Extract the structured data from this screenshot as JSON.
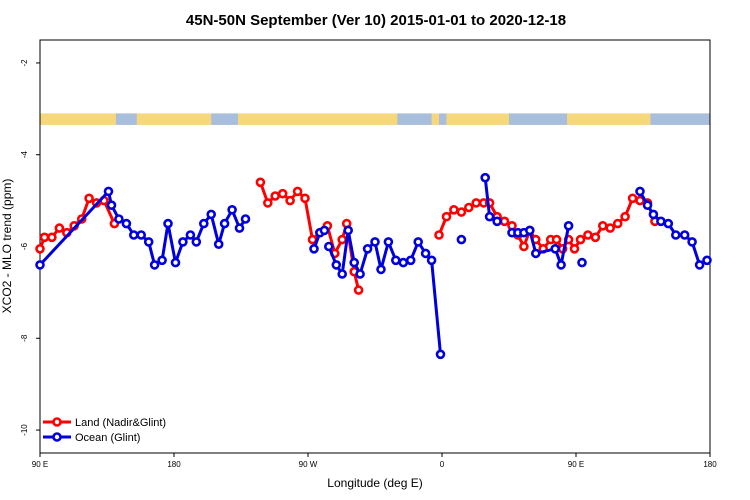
{
  "chart_data": {
    "type": "line",
    "title": "45N-50N September (Ver 10)   2015-01-01 to 2020-12-18",
    "xlabel": "Longitude (deg E)",
    "ylabel": "XCO2 - MLO trend (ppm)",
    "xlim": [
      90,
      540
    ],
    "ylim": [
      -10.5,
      -1.5
    ],
    "x_ticks": [
      {
        "value": 90,
        "label": "90 E"
      },
      {
        "value": 180,
        "label": "180"
      },
      {
        "value": 270,
        "label": "90 W"
      },
      {
        "value": 360,
        "label": "0"
      },
      {
        "value": 450,
        "label": "90 E"
      },
      {
        "value": 540,
        "label": "180"
      }
    ],
    "y_ticks": [
      {
        "value": -2,
        "label": "-2"
      },
      {
        "value": -4,
        "label": "-4"
      },
      {
        "value": -6,
        "label": "-6"
      },
      {
        "value": -8,
        "label": "-8"
      },
      {
        "value": -10,
        "label": "-10"
      }
    ],
    "grid": false,
    "legend_position": "bottom-left",
    "land_ocean_strip": {
      "y_range": [
        -3.35,
        -3.1
      ],
      "land_color": "#f7d77c",
      "ocean_color": "#a8bedd",
      "ocean_x_ranges": [
        [
          141,
          155
        ],
        [
          205,
          223
        ],
        [
          330,
          353
        ],
        [
          358,
          363
        ],
        [
          405,
          444
        ],
        [
          500,
          540
        ]
      ]
    },
    "series": [
      {
        "name": "Land (Nadir&Glint)",
        "color": "#ff0000",
        "segments": [
          [
            [
              90,
              -6.05
            ],
            [
              93,
              -5.8
            ],
            [
              98,
              -5.8
            ],
            [
              103,
              -5.6
            ],
            [
              108,
              -5.7
            ],
            [
              113,
              -5.55
            ],
            [
              118,
              -5.4
            ],
            [
              123,
              -4.95
            ],
            [
              128,
              -5.05
            ],
            [
              133,
              -5.0
            ],
            [
              140,
              -5.5
            ]
          ],
          [
            [
              238,
              -4.6
            ],
            [
              243,
              -5.05
            ],
            [
              248,
              -4.9
            ],
            [
              253,
              -4.85
            ],
            [
              258,
              -5.0
            ],
            [
              263,
              -4.8
            ],
            [
              268,
              -4.95
            ],
            [
              273,
              -5.85
            ],
            [
              278,
              -5.7
            ],
            [
              283,
              -5.55
            ],
            [
              288,
              -6.15
            ],
            [
              293,
              -5.85
            ],
            [
              296,
              -5.5
            ],
            [
              301,
              -6.55
            ],
            [
              304,
              -6.95
            ]
          ],
          [
            [
              358,
              -5.75
            ],
            [
              363,
              -5.35
            ],
            [
              368,
              -5.2
            ],
            [
              373,
              -5.25
            ],
            [
              378,
              -5.15
            ],
            [
              383,
              -5.05
            ],
            [
              388,
              -5.05
            ],
            [
              392,
              -5.05
            ],
            [
              397,
              -5.35
            ],
            [
              402,
              -5.45
            ],
            [
              407,
              -5.55
            ],
            [
              411,
              -5.75
            ],
            [
              415,
              -6.0
            ],
            [
              419,
              -5.65
            ],
            [
              423,
              -5.85
            ],
            [
              428,
              -6.05
            ],
            [
              433,
              -5.85
            ],
            [
              437,
              -5.85
            ],
            [
              441,
              -6.05
            ],
            [
              445,
              -5.85
            ],
            [
              449,
              -6.05
            ],
            [
              453,
              -5.85
            ],
            [
              458,
              -5.75
            ],
            [
              463,
              -5.8
            ],
            [
              468,
              -5.55
            ],
            [
              473,
              -5.6
            ],
            [
              478,
              -5.5
            ],
            [
              483,
              -5.35
            ],
            [
              488,
              -4.95
            ],
            [
              493,
              -5.0
            ],
            [
              498,
              -5.05
            ],
            [
              503,
              -5.45
            ]
          ]
        ]
      },
      {
        "name": "Ocean (Glint)",
        "color": "#0000dd",
        "segments": [
          [
            [
              90,
              -6.4
            ],
            [
              136,
              -4.8
            ],
            [
              138,
              -5.1
            ],
            [
              143,
              -5.4
            ],
            [
              148,
              -5.5
            ],
            [
              153,
              -5.75
            ],
            [
              158,
              -5.75
            ],
            [
              163,
              -5.9
            ],
            [
              167,
              -6.4
            ],
            [
              172,
              -6.3
            ],
            [
              176,
              -5.5
            ],
            [
              181,
              -6.35
            ],
            [
              186,
              -5.9
            ],
            [
              191,
              -5.75
            ],
            [
              195,
              -5.9
            ],
            [
              200,
              -5.5
            ],
            [
              205,
              -5.3
            ],
            [
              210,
              -5.95
            ],
            [
              214,
              -5.5
            ],
            [
              219,
              -5.2
            ],
            [
              224,
              -5.6
            ],
            [
              228,
              -5.4
            ]
          ],
          [
            [
              274,
              -6.05
            ],
            [
              278,
              -5.7
            ],
            [
              281,
              -5.65
            ]
          ],
          [
            [
              284,
              -6.0
            ],
            [
              289,
              -6.4
            ],
            [
              293,
              -6.6
            ],
            [
              297,
              -5.65
            ],
            [
              301,
              -6.35
            ],
            [
              305,
              -6.6
            ],
            [
              310,
              -6.05
            ],
            [
              315,
              -5.9
            ],
            [
              319,
              -6.5
            ],
            [
              324,
              -5.9
            ],
            [
              329,
              -6.3
            ],
            [
              334,
              -6.35
            ],
            [
              339,
              -6.3
            ],
            [
              344,
              -5.9
            ],
            [
              349,
              -6.15
            ],
            [
              353,
              -6.3
            ],
            [
              359,
              -8.35
            ]
          ],
          [
            [
              373,
              -5.85
            ]
          ],
          [
            [
              389,
              -4.5
            ],
            [
              392,
              -5.35
            ],
            [
              397,
              -5.45
            ]
          ],
          [
            [
              407,
              -5.7
            ],
            [
              411,
              -5.7
            ],
            [
              415,
              -5.7
            ],
            [
              419,
              -5.65
            ],
            [
              423,
              -6.15
            ],
            [
              436,
              -6.05
            ],
            [
              440,
              -6.4
            ],
            [
              445,
              -5.55
            ]
          ],
          [
            [
              454,
              -6.35
            ]
          ],
          [
            [
              493,
              -4.8
            ],
            [
              498,
              -5.1
            ],
            [
              502,
              -5.3
            ],
            [
              507,
              -5.45
            ],
            [
              512,
              -5.5
            ],
            [
              517,
              -5.75
            ],
            [
              523,
              -5.75
            ],
            [
              528,
              -5.9
            ],
            [
              533,
              -6.4
            ],
            [
              538,
              -6.3
            ]
          ]
        ]
      }
    ]
  }
}
